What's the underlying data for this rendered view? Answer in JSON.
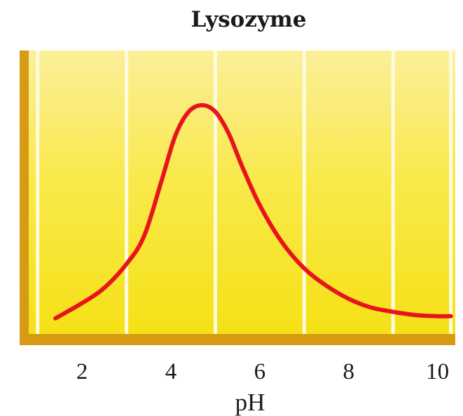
{
  "chart_data": {
    "type": "line",
    "title": "Lysozyme",
    "xlabel": "pH",
    "ylabel": "",
    "xlim": [
      0.8,
      10.4
    ],
    "ylim": [
      0,
      1
    ],
    "x_ticks": [
      2,
      4,
      6,
      8,
      10
    ],
    "x_tick_labels": [
      "2",
      "4",
      "6",
      "8",
      "10"
    ],
    "grid": "vertical",
    "series": [
      {
        "color": "#e8141c",
        "x": [
          1.4,
          2.0,
          2.5,
          3.0,
          3.4,
          3.8,
          4.1,
          4.4,
          4.7,
          5.0,
          5.3,
          5.6,
          6.0,
          6.5,
          7.0,
          7.5,
          8.0,
          8.5,
          9.0,
          9.5,
          10.0,
          10.3
        ],
        "y": [
          0.02,
          0.09,
          0.16,
          0.27,
          0.4,
          0.66,
          0.86,
          0.97,
          1.0,
          0.97,
          0.87,
          0.72,
          0.54,
          0.37,
          0.25,
          0.17,
          0.11,
          0.07,
          0.05,
          0.035,
          0.03,
          0.03
        ]
      }
    ],
    "colors": {
      "plot_background": "#f7e51a",
      "axis_bar": "#d69a14",
      "grid_line": "#fffbe0",
      "curve": "#e8141c"
    }
  }
}
